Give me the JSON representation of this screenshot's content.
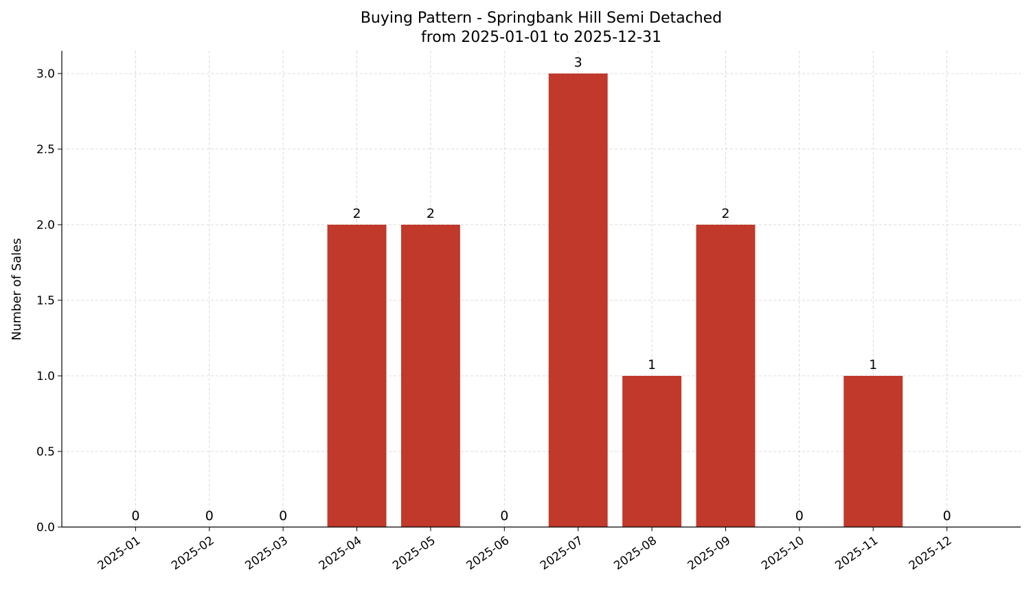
{
  "chart_data": {
    "type": "bar",
    "title": "Buying Pattern - Springbank Hill Semi Detached",
    "subtitle": "from 2025-01-01 to 2025-12-31",
    "xlabel": "",
    "ylabel": "Number of Sales",
    "categories": [
      "2025-01",
      "2025-02",
      "2025-03",
      "2025-04",
      "2025-05",
      "2025-06",
      "2025-07",
      "2025-08",
      "2025-09",
      "2025-10",
      "2025-11",
      "2025-12"
    ],
    "values": [
      0,
      0,
      0,
      2,
      2,
      0,
      3,
      1,
      2,
      0,
      1,
      0
    ],
    "ylim": [
      0,
      3.15
    ],
    "yticks": [
      "0.0",
      "0.5",
      "1.0",
      "1.5",
      "2.0",
      "2.5",
      "3.0"
    ],
    "grid": true,
    "bar_color": "#c0392b"
  }
}
